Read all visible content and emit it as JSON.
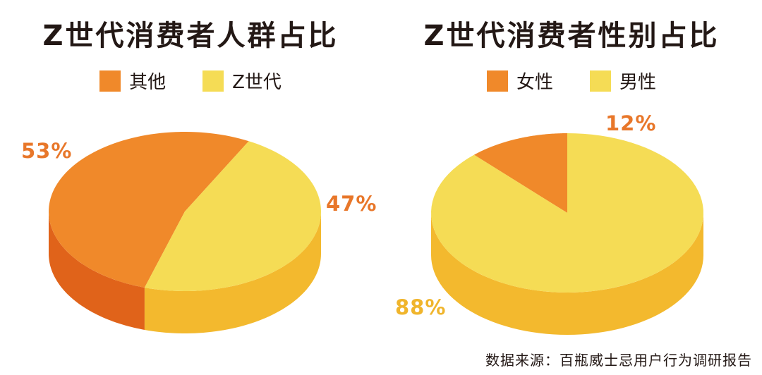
{
  "colors": {
    "orange_top": "#f0892a",
    "orange_side": "#e0631a",
    "yellow_top": "#f5dc55",
    "yellow_side": "#f3b92e",
    "label_orange": "#e8772a",
    "label_yellow": "#f0b52c"
  },
  "chart_data": [
    {
      "type": "pie",
      "title": "Z世代消费者人群占比",
      "slices": [
        {
          "label": "其他",
          "value": 53,
          "display": "53%"
        },
        {
          "label": "Z世代",
          "value": 47,
          "display": "47%"
        }
      ]
    },
    {
      "type": "pie",
      "title": "Z世代消费者性别占比",
      "slices": [
        {
          "label": "女性",
          "value": 12,
          "display": "12%"
        },
        {
          "label": "男性",
          "value": 88,
          "display": "88%"
        }
      ]
    }
  ],
  "source": "数据来源：百瓶威士忌用户行为调研报告"
}
